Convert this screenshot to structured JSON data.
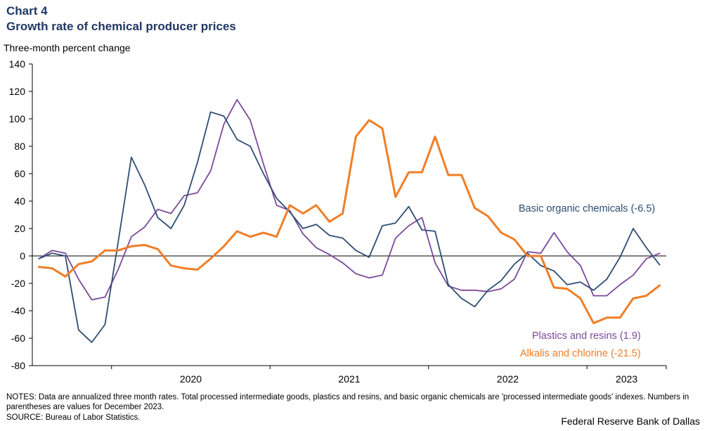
{
  "header": {
    "chart_label": "Chart 4",
    "title": "Growth rate of chemical producer prices",
    "y_unit": "Three-month  percent change"
  },
  "footer": {
    "notes": "NOTES: Data  are annualized three month rates. Total processed intermediate goods, plastics and resins, and basic organic chemicals are  'processed intermediate goods' indexes. Numbers in parentheses are values for December 2023.",
    "source": "SOURCE: Bureau of Labor Statistics.",
    "credit": "Federal Reserve Bank of Dallas"
  },
  "colors": {
    "basic_organic": "#2e4d73",
    "plastics": "#7b4a9b",
    "alkalis": "#f07e26",
    "axis": "#000000"
  },
  "chart_data": {
    "type": "line",
    "x_start": "2019-07",
    "x_end": "2023-12",
    "x_tick_labels": [
      "2020",
      "2021",
      "2022",
      "2023"
    ],
    "ylim": [
      -80,
      140
    ],
    "y_ticks": [
      140,
      120,
      100,
      80,
      60,
      40,
      20,
      0,
      -20,
      -40,
      -60,
      -80
    ],
    "grid": false,
    "series": [
      {
        "name": "Basic organic chemicals (-6.5)",
        "color_key": "basic_organic",
        "values": [
          -2,
          2,
          0,
          -54,
          -63,
          -50,
          10,
          72,
          52,
          28,
          20,
          37,
          68,
          105,
          102,
          85,
          80,
          60,
          42,
          32,
          20,
          23,
          15,
          13,
          4,
          -1,
          22,
          24,
          36,
          19,
          18,
          -21,
          -31,
          -37,
          -25,
          -18,
          -6,
          2,
          -7,
          -11,
          -21,
          -19,
          -25,
          -17,
          -1,
          20,
          6,
          -6.5
        ]
      },
      {
        "name": "Plastics and resins (1.9)",
        "color_key": "plastics",
        "values": [
          -2,
          4,
          2,
          -17,
          -32,
          -30,
          -10,
          14,
          21,
          34,
          31,
          44,
          46,
          62,
          96,
          114,
          99,
          67,
          37,
          33,
          16,
          6,
          1,
          -5,
          -13,
          -16,
          -14,
          13,
          22,
          28,
          -5,
          -22,
          -25,
          -25,
          -26,
          -24,
          -17,
          3,
          2,
          17,
          3,
          -7,
          -29,
          -29,
          -21,
          -14,
          -2,
          1.9
        ]
      },
      {
        "name": "Alkalis and chlorine (-21.5)",
        "color_key": "alkalis",
        "values": [
          -8,
          -9,
          -15,
          -6,
          -4,
          4,
          4,
          7,
          8,
          5,
          -7,
          -9,
          -10,
          -2,
          7,
          18,
          14,
          17,
          14,
          37,
          31,
          37,
          25,
          31,
          87,
          99,
          93,
          43,
          61,
          61,
          87,
          59,
          59,
          35,
          29,
          17,
          12,
          0,
          0,
          -23,
          -24,
          -31,
          -49,
          -45,
          -45,
          -31,
          -29,
          -21.5
        ]
      }
    ]
  }
}
